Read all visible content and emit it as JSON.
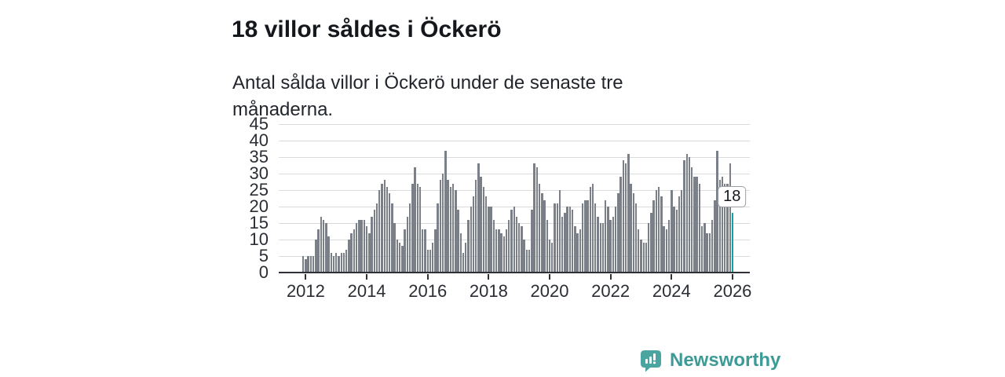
{
  "header": {
    "title": "18 villor såldes i Öckerö",
    "subtitle": "Antal sålda villor i Öckerö under de senaste tre månaderna."
  },
  "chart_data": {
    "type": "bar",
    "title": "18 villor såldes i Öckerö",
    "subtitle": "Antal sålda villor i Öckerö under de senaste tre månaderna.",
    "x_unit": "month",
    "x_first": "2011-12",
    "x_last": "2026-01",
    "x_tick_labels": [
      "2012",
      "2014",
      "2016",
      "2018",
      "2020",
      "2022",
      "2024",
      "2026"
    ],
    "y_ticks": [
      0,
      5,
      10,
      15,
      20,
      25,
      30,
      35,
      40,
      45
    ],
    "ylim": [
      0,
      45
    ],
    "grid": true,
    "bar_color": "#7b8088",
    "values": [
      5,
      4,
      5,
      5,
      5,
      10,
      13,
      17,
      16,
      15,
      11,
      6,
      5,
      6,
      5,
      6,
      6,
      7,
      10,
      12,
      13,
      15,
      16,
      16,
      16,
      14,
      12,
      17,
      19,
      21,
      25,
      27,
      28,
      26,
      24,
      21,
      15,
      10,
      9,
      8,
      13,
      17,
      21,
      27,
      32,
      27,
      26,
      13,
      13,
      7,
      7,
      9,
      13,
      21,
      28,
      30,
      37,
      28,
      26,
      27,
      25,
      19,
      12,
      6,
      9,
      16,
      20,
      23,
      28,
      33,
      29,
      26,
      23,
      20,
      20,
      16,
      13,
      13,
      12,
      11,
      13,
      16,
      19,
      20,
      17,
      15,
      14,
      10,
      7,
      7,
      19,
      33,
      32,
      27,
      24,
      22,
      16,
      10,
      9,
      21,
      21,
      25,
      17,
      18,
      20,
      20,
      19,
      14,
      12,
      13,
      21,
      22,
      22,
      26,
      27,
      21,
      17,
      15,
      15,
      22,
      20,
      16,
      17,
      20,
      24,
      29,
      34,
      33,
      36,
      27,
      24,
      21,
      13,
      10,
      9,
      9,
      15,
      18,
      22,
      25,
      26,
      23,
      14,
      13,
      16,
      25,
      20,
      19,
      23,
      25,
      34,
      36,
      35,
      32,
      29,
      29,
      27,
      14,
      15,
      12,
      12,
      16,
      22,
      37,
      28,
      29,
      27,
      27,
      33,
      18
    ],
    "highlight": {
      "index": 169,
      "value": 18,
      "label": "18",
      "color": "#12a3a0"
    }
  },
  "footer": {
    "brand": "Newsworthy",
    "brand_color": "#3d9b96",
    "logo_color": "#4aa5a0"
  }
}
